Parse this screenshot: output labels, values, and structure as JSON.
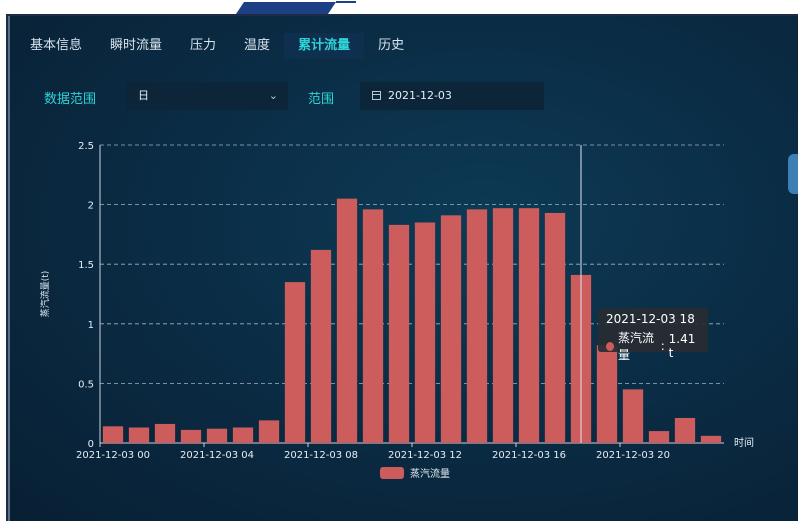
{
  "tabs": [
    {
      "label": "基本信息",
      "active": false
    },
    {
      "label": "瞬时流量",
      "active": false
    },
    {
      "label": "压力",
      "active": false
    },
    {
      "label": "温度",
      "active": false
    },
    {
      "label": "累计流量",
      "active": true
    },
    {
      "label": "历史",
      "active": false
    }
  ],
  "filters": {
    "range_label": "数据范围",
    "range_value": "日",
    "date_label": "范围",
    "date_value": "2021-12-03"
  },
  "colors": {
    "bar": "#cd5c5c",
    "accent": "#2fd3d7"
  },
  "chart_data": {
    "type": "bar",
    "ylabel": "蒸汽流量(t)",
    "xlabel": "时间",
    "ylim": [
      0,
      2.5
    ],
    "yticks": [
      "0",
      "0.5",
      "1",
      "1.5",
      "2",
      "2.5"
    ],
    "grid": true,
    "categories": [
      "2021-12-03 00",
      "2021-12-03 01",
      "2021-12-03 02",
      "2021-12-03 03",
      "2021-12-03 04",
      "2021-12-03 05",
      "2021-12-03 06",
      "2021-12-03 07",
      "2021-12-03 08",
      "2021-12-03 09",
      "2021-12-03 10",
      "2021-12-03 11",
      "2021-12-03 12",
      "2021-12-03 13",
      "2021-12-03 14",
      "2021-12-03 15",
      "2021-12-03 16",
      "2021-12-03 17",
      "2021-12-03 18",
      "2021-12-03 19",
      "2021-12-03 20",
      "2021-12-03 21",
      "2021-12-03 22",
      "2021-12-03 23"
    ],
    "tick_labels": [
      "2021-12-03 00",
      "2021-12-03 04",
      "2021-12-03 08",
      "2021-12-03 12",
      "2021-12-03 16",
      "2021-12-03 20"
    ],
    "series": [
      {
        "name": "蒸汽流量",
        "values": [
          0.14,
          0.13,
          0.16,
          0.11,
          0.12,
          0.13,
          0.19,
          1.35,
          1.62,
          2.05,
          1.96,
          1.83,
          1.85,
          1.91,
          1.96,
          1.97,
          1.97,
          1.93,
          1.41,
          0.82,
          0.45,
          0.1,
          0.21,
          0.06
        ]
      }
    ],
    "legend": "bottom-center",
    "tooltip": {
      "title": "2021-12-03 18",
      "series": "蒸汽流量",
      "value": "1.41 t"
    }
  }
}
